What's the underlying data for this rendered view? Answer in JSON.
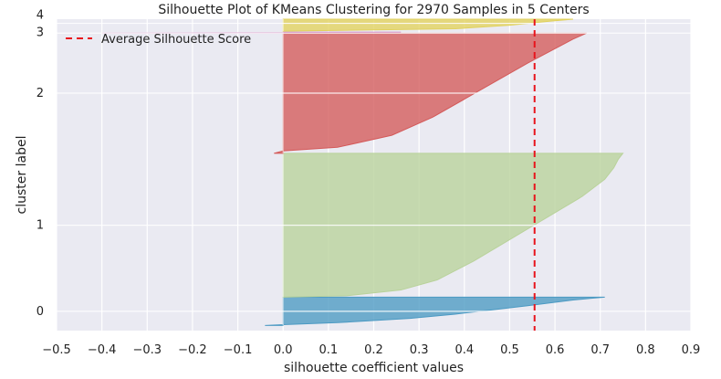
{
  "chart_data": {
    "type": "area",
    "title": "Silhouette Plot of KMeans Clustering for 2970 Samples in 5 Centers",
    "xlabel": "silhouette coefficient values",
    "ylabel": "cluster label",
    "xlim": [
      -0.5,
      0.9
    ],
    "ylim": [
      -40,
      2990
    ],
    "x_ticks": [
      -0.5,
      -0.4,
      -0.3,
      -0.2,
      -0.1,
      0.0,
      0.1,
      0.2,
      0.3,
      0.4,
      0.5,
      0.6,
      0.7,
      0.8,
      0.9
    ],
    "x_tick_labels": [
      "−0.5",
      "−0.4",
      "−0.3",
      "−0.2",
      "−0.1",
      "0.0",
      "0.1",
      "0.2",
      "0.3",
      "0.4",
      "0.5",
      "0.6",
      "0.7",
      "0.8",
      "0.9"
    ],
    "grid": true,
    "legend_position": "top-left",
    "average_silhouette_score": 0.555,
    "average_label": "Average Silhouette Score",
    "average_color": "#e8141c",
    "clusters": [
      {
        "label": "0",
        "y_start": 10,
        "y_end": 285,
        "color": "#4c9ac3",
        "silhouette_min": -0.04,
        "silhouette_max": 0.71,
        "profile": [
          [
            0,
            -0.04
          ],
          [
            0.03,
            0.0
          ],
          [
            0.1,
            0.12
          ],
          [
            0.25,
            0.28
          ],
          [
            0.4,
            0.38
          ],
          [
            0.55,
            0.46
          ],
          [
            0.7,
            0.54
          ],
          [
            0.82,
            0.6
          ],
          [
            0.9,
            0.64
          ],
          [
            0.96,
            0.68
          ],
          [
            1,
            0.71
          ]
        ]
      },
      {
        "label": "1",
        "y_start": 285,
        "y_end": 1685,
        "color": "#b9d29b",
        "silhouette_min": 0.0,
        "silhouette_max": 0.75,
        "profile": [
          [
            0,
            0.0
          ],
          [
            0.01,
            0.14
          ],
          [
            0.05,
            0.26
          ],
          [
            0.12,
            0.34
          ],
          [
            0.25,
            0.42
          ],
          [
            0.4,
            0.5
          ],
          [
            0.55,
            0.58
          ],
          [
            0.7,
            0.66
          ],
          [
            0.82,
            0.71
          ],
          [
            0.9,
            0.73
          ],
          [
            0.96,
            0.74
          ],
          [
            1,
            0.75
          ]
        ]
      },
      {
        "label": "2",
        "y_start": 1685,
        "y_end": 2855,
        "color": "#d45a5a",
        "silhouette_min": -0.02,
        "silhouette_max": 0.67,
        "profile": [
          [
            0,
            -0.02
          ],
          [
            0.02,
            0.0
          ],
          [
            0.05,
            0.12
          ],
          [
            0.15,
            0.24
          ],
          [
            0.3,
            0.33
          ],
          [
            0.45,
            0.4
          ],
          [
            0.6,
            0.47
          ],
          [
            0.75,
            0.54
          ],
          [
            0.87,
            0.6
          ],
          [
            0.95,
            0.64
          ],
          [
            1,
            0.67
          ]
        ]
      },
      {
        "label": "3",
        "y_start": 2855,
        "y_end": 2863,
        "color": "#cc79b7",
        "silhouette_min": -0.4,
        "silhouette_max": 0.26,
        "profile": [
          [
            0,
            -0.4
          ],
          [
            0.5,
            0.0
          ],
          [
            1,
            0.26
          ]
        ]
      },
      {
        "label": "4",
        "y_start": 2873,
        "y_end": 2990,
        "color": "#e1d25d",
        "silhouette_min": 0.0,
        "silhouette_max": 0.64,
        "profile": [
          [
            0,
            0.0
          ],
          [
            0.2,
            0.38
          ],
          [
            0.5,
            0.5
          ],
          [
            0.8,
            0.58
          ],
          [
            1,
            0.64
          ]
        ]
      }
    ]
  }
}
